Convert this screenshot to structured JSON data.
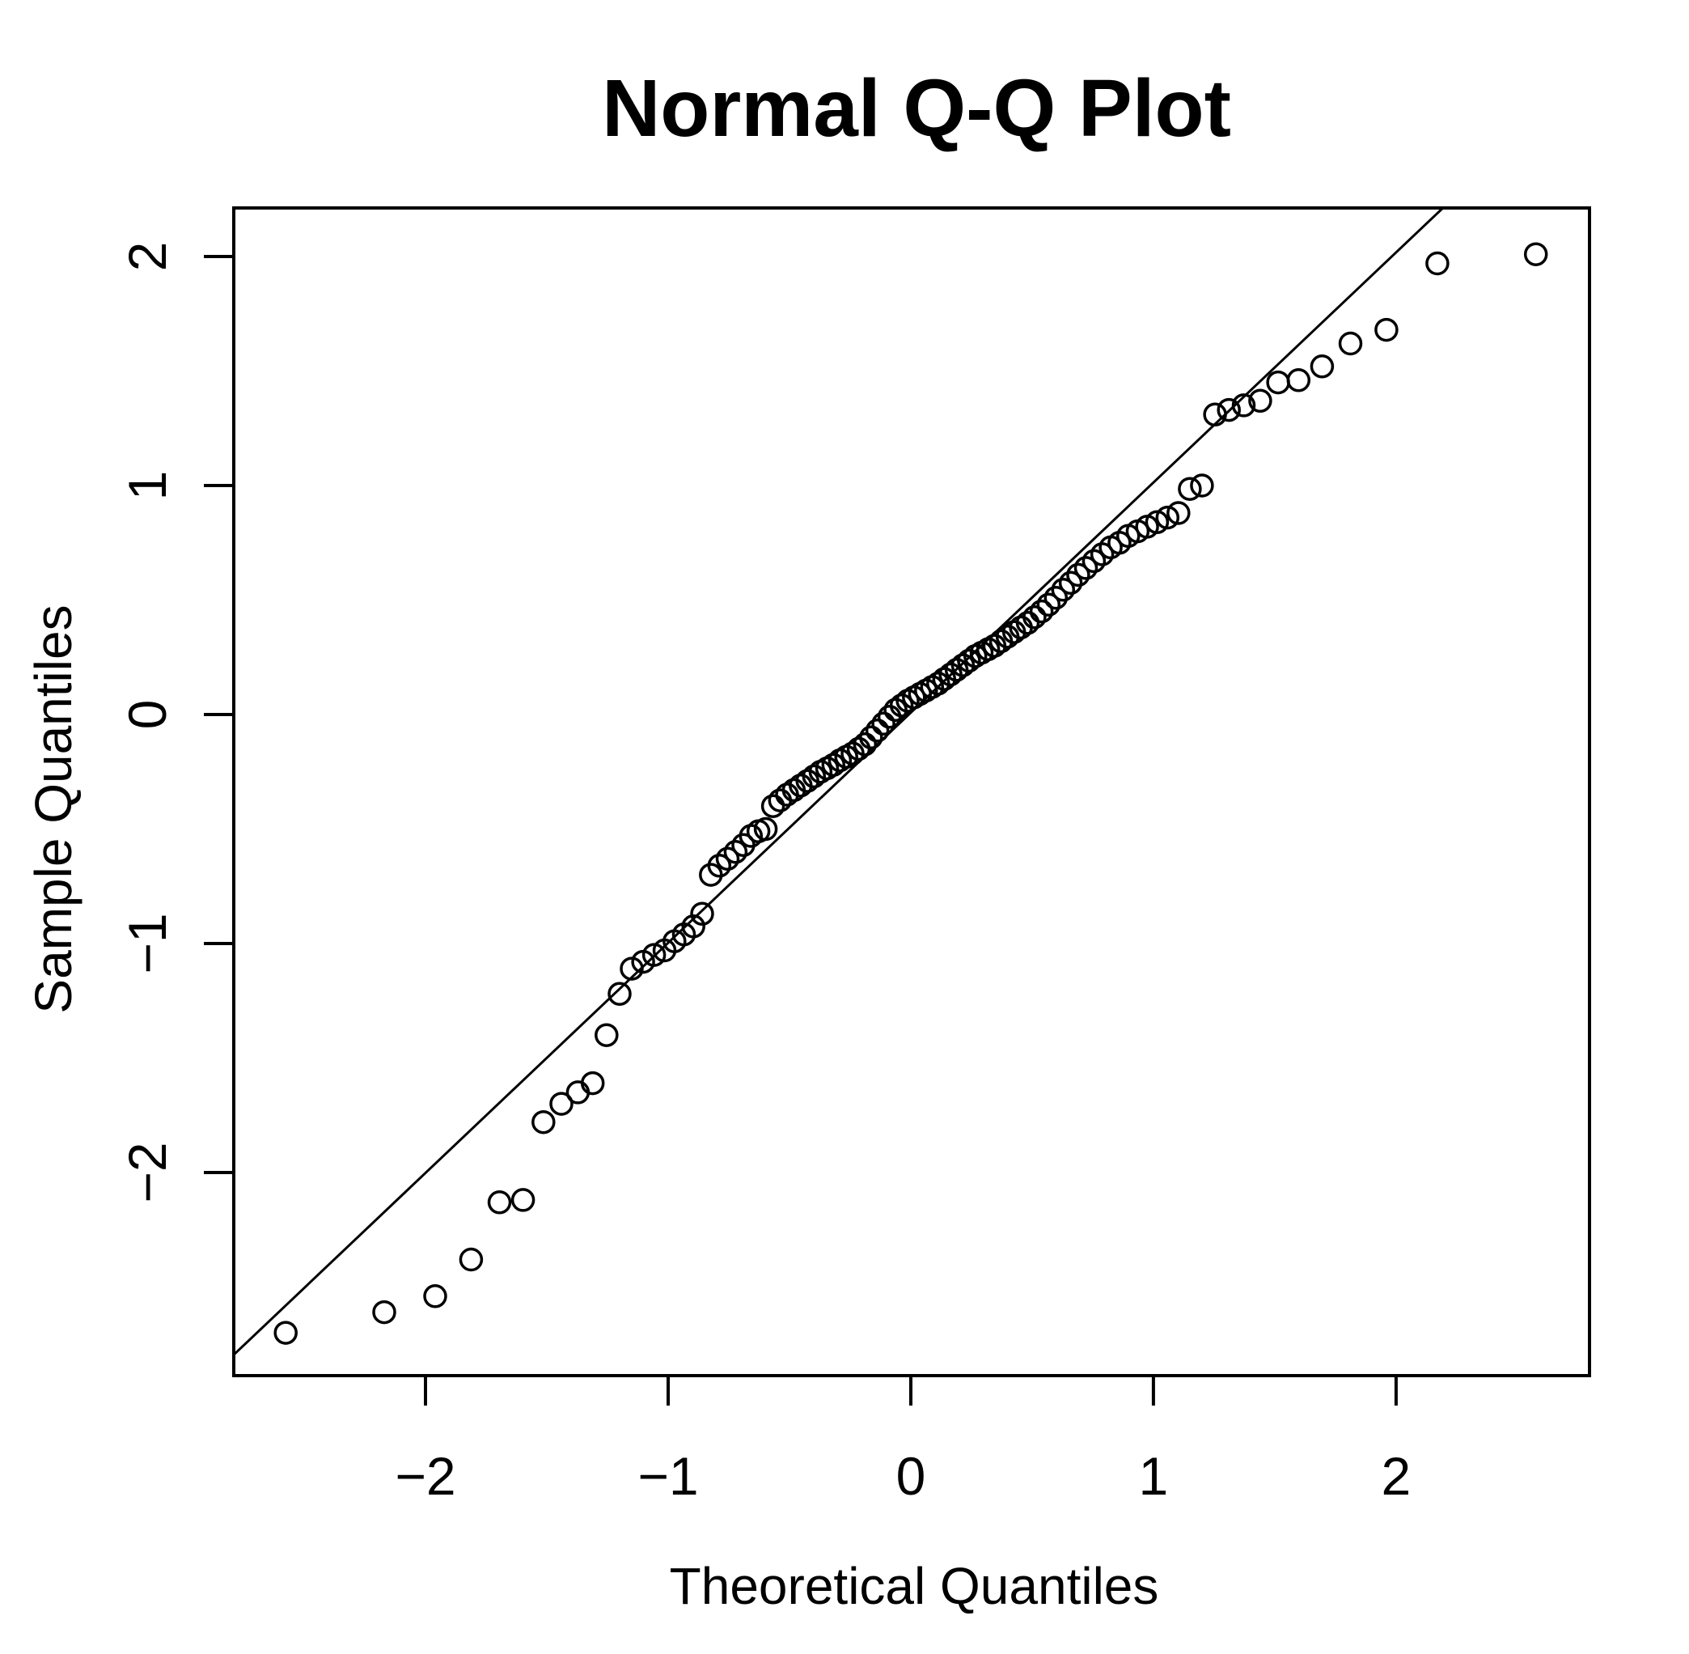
{
  "chart_data": {
    "type": "scatter",
    "subtype": "normal-qq-plot",
    "title": "Normal Q-Q Plot",
    "xlabel": "Theoretical Quantiles",
    "ylabel": "Sample Quantiles",
    "grid": false,
    "legend_position": "none",
    "background_color": "#ffffff",
    "foreground_color": "#000000",
    "xlim": [
      -2.79,
      2.797
    ],
    "ylim": [
      -2.887,
      2.212
    ],
    "x_ticks": {
      "values": [
        -2,
        -1,
        0,
        1,
        2
      ],
      "labels": [
        "−2",
        "−1",
        "0",
        "1",
        "2"
      ]
    },
    "y_ticks": {
      "values": [
        -2,
        -1,
        0,
        1,
        2
      ],
      "labels": [
        "−2",
        "−1",
        "0",
        "1",
        "2"
      ]
    },
    "marker": {
      "shape": "open-circle",
      "radius_px": 13,
      "stroke_px": 3.5,
      "color": "#000000"
    },
    "reference_line": {
      "slope": 1.005,
      "intercept": 0.008,
      "color": "#000000",
      "stroke_px": 3
    },
    "n_points": 100,
    "points": [
      [
        -2.576,
        -2.7
      ],
      [
        -2.17,
        -2.61
      ],
      [
        -1.96,
        -2.54
      ],
      [
        -1.812,
        -2.38
      ],
      [
        -1.695,
        -2.13
      ],
      [
        -1.598,
        -2.12
      ],
      [
        -1.514,
        -1.78
      ],
      [
        -1.44,
        -1.7
      ],
      [
        -1.372,
        -1.65
      ],
      [
        -1.311,
        -1.61
      ],
      [
        -1.254,
        -1.4
      ],
      [
        -1.2,
        -1.22
      ],
      [
        -1.15,
        -1.11
      ],
      [
        -1.103,
        -1.08
      ],
      [
        -1.058,
        -1.05
      ],
      [
        -1.015,
        -1.03
      ],
      [
        -0.974,
        -0.99
      ],
      [
        -0.935,
        -0.96
      ],
      [
        -0.896,
        -0.925
      ],
      [
        -0.86,
        -0.87
      ],
      [
        -0.824,
        -0.7
      ],
      [
        -0.789,
        -0.66
      ],
      [
        -0.755,
        -0.63
      ],
      [
        -0.722,
        -0.6
      ],
      [
        -0.69,
        -0.57
      ],
      [
        -0.659,
        -0.53
      ],
      [
        -0.628,
        -0.51
      ],
      [
        -0.598,
        -0.5
      ],
      [
        -0.568,
        -0.4
      ],
      [
        -0.539,
        -0.375
      ],
      [
        -0.51,
        -0.35
      ],
      [
        -0.482,
        -0.33
      ],
      [
        -0.454,
        -0.31
      ],
      [
        -0.426,
        -0.29
      ],
      [
        -0.399,
        -0.27
      ],
      [
        -0.372,
        -0.25
      ],
      [
        -0.345,
        -0.235
      ],
      [
        -0.319,
        -0.22
      ],
      [
        -0.292,
        -0.2
      ],
      [
        -0.266,
        -0.185
      ],
      [
        -0.24,
        -0.17
      ],
      [
        -0.215,
        -0.15
      ],
      [
        -0.189,
        -0.13
      ],
      [
        -0.164,
        -0.1
      ],
      [
        -0.138,
        -0.07
      ],
      [
        -0.113,
        -0.04
      ],
      [
        -0.088,
        -0.01
      ],
      [
        -0.063,
        0.02
      ],
      [
        -0.038,
        0.04
      ],
      [
        -0.013,
        0.06
      ],
      [
        0.013,
        0.075
      ],
      [
        0.038,
        0.09
      ],
      [
        0.063,
        0.105
      ],
      [
        0.088,
        0.12
      ],
      [
        0.113,
        0.135
      ],
      [
        0.138,
        0.155
      ],
      [
        0.164,
        0.175
      ],
      [
        0.189,
        0.195
      ],
      [
        0.215,
        0.215
      ],
      [
        0.24,
        0.235
      ],
      [
        0.266,
        0.255
      ],
      [
        0.292,
        0.27
      ],
      [
        0.319,
        0.285
      ],
      [
        0.345,
        0.3
      ],
      [
        0.372,
        0.32
      ],
      [
        0.399,
        0.34
      ],
      [
        0.426,
        0.36
      ],
      [
        0.454,
        0.38
      ],
      [
        0.482,
        0.4
      ],
      [
        0.51,
        0.425
      ],
      [
        0.539,
        0.45
      ],
      [
        0.568,
        0.48
      ],
      [
        0.598,
        0.51
      ],
      [
        0.628,
        0.545
      ],
      [
        0.659,
        0.575
      ],
      [
        0.69,
        0.61
      ],
      [
        0.722,
        0.64
      ],
      [
        0.755,
        0.67
      ],
      [
        0.789,
        0.7
      ],
      [
        0.824,
        0.73
      ],
      [
        0.86,
        0.75
      ],
      [
        0.896,
        0.78
      ],
      [
        0.935,
        0.8
      ],
      [
        0.974,
        0.82
      ],
      [
        1.015,
        0.84
      ],
      [
        1.058,
        0.86
      ],
      [
        1.103,
        0.88
      ],
      [
        1.15,
        0.985
      ],
      [
        1.2,
        1.0
      ],
      [
        1.254,
        1.31
      ],
      [
        1.311,
        1.33
      ],
      [
        1.372,
        1.35
      ],
      [
        1.44,
        1.37
      ],
      [
        1.514,
        1.45
      ],
      [
        1.598,
        1.46
      ],
      [
        1.695,
        1.52
      ],
      [
        1.812,
        1.62
      ],
      [
        1.96,
        1.68
      ],
      [
        2.17,
        1.97
      ],
      [
        2.576,
        2.01
      ]
    ]
  }
}
